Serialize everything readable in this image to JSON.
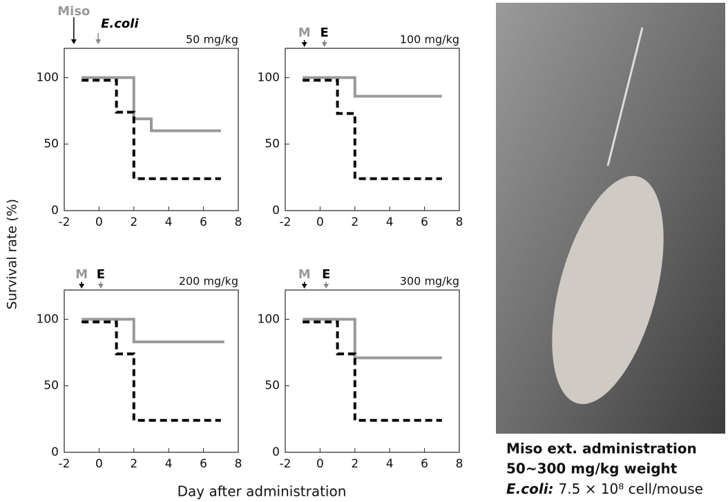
{
  "figure": {
    "ylabel": "Survival rate (%)",
    "xlabel": "Day after administration",
    "caption": [
      "Miso ext. administration",
      "50~300 mg/kg weight"
    ],
    "caption_species": "E.coli:",
    "caption_dose": "7.5 × 10⁸ cell/mouse"
  },
  "chart_data": [
    {
      "type": "line",
      "subtitle": "50 mg/kg",
      "xlim": [
        -2,
        8
      ],
      "xticks": [
        -2,
        0,
        2,
        4,
        6,
        8
      ],
      "ylim": [
        0,
        122
      ],
      "yticks": [
        0,
        50,
        100
      ],
      "markers": [
        {
          "label": "Miso",
          "x": -1.45,
          "label_color": "#999999",
          "arrow_color": "#000000"
        },
        {
          "label": "E.coli",
          "x": -0.05,
          "label_color": "#000000",
          "arrow_color": "#888888"
        }
      ],
      "series": [
        {
          "color": "#999999",
          "dash": false,
          "x": [
            -1,
            2,
            2,
            3,
            3,
            7
          ],
          "values": [
            100,
            100,
            69,
            69,
            60,
            60
          ]
        },
        {
          "color": "#000000",
          "dash": true,
          "x": [
            -1,
            1,
            1,
            2,
            2,
            7
          ],
          "values": [
            98,
            98,
            74,
            74,
            24,
            24
          ]
        }
      ]
    },
    {
      "type": "line",
      "subtitle": "100 mg/kg",
      "xlim": [
        -2,
        8
      ],
      "xticks": [
        -2,
        0,
        2,
        4,
        6,
        8
      ],
      "ylim": [
        0,
        122
      ],
      "yticks": [
        0,
        50,
        100
      ],
      "markers": [
        {
          "label": "M",
          "x": -0.9,
          "label_color": "#999999",
          "arrow_color": "#000000"
        },
        {
          "label": "E",
          "x": 0.25,
          "label_color": "#000000",
          "arrow_color": "#888888"
        }
      ],
      "series": [
        {
          "color": "#999999",
          "dash": false,
          "x": [
            -1,
            2,
            2,
            7
          ],
          "values": [
            100,
            100,
            86,
            86
          ]
        },
        {
          "color": "#000000",
          "dash": true,
          "x": [
            -1,
            1,
            1,
            2,
            2,
            7
          ],
          "values": [
            98,
            98,
            73,
            73,
            24,
            24
          ]
        }
      ]
    },
    {
      "type": "line",
      "subtitle": "200 mg/kg",
      "xlim": [
        -2,
        8
      ],
      "xticks": [
        -2,
        0,
        2,
        4,
        6,
        8
      ],
      "ylim": [
        0,
        122
      ],
      "yticks": [
        0,
        50,
        100
      ],
      "markers": [
        {
          "label": "M",
          "x": -1,
          "label_color": "#999999",
          "arrow_color": "#000000"
        },
        {
          "label": "E",
          "x": 0.1,
          "label_color": "#000000",
          "arrow_color": "#888888"
        }
      ],
      "series": [
        {
          "color": "#999999",
          "dash": false,
          "x": [
            -1,
            2,
            2,
            7.2
          ],
          "values": [
            100,
            100,
            83,
            83
          ]
        },
        {
          "color": "#000000",
          "dash": true,
          "x": [
            -1,
            1,
            1,
            2,
            2,
            7
          ],
          "values": [
            98,
            98,
            74,
            74,
            24,
            24
          ]
        }
      ]
    },
    {
      "type": "line",
      "subtitle": "300 mg/kg",
      "xlim": [
        -2,
        8
      ],
      "xticks": [
        -2,
        0,
        2,
        4,
        6,
        8
      ],
      "ylim": [
        0,
        122
      ],
      "yticks": [
        0,
        50,
        100
      ],
      "markers": [
        {
          "label": "M",
          "x": -0.9,
          "label_color": "#999999",
          "arrow_color": "#000000"
        },
        {
          "label": "E",
          "x": 0.35,
          "label_color": "#000000",
          "arrow_color": "#888888"
        }
      ],
      "series": [
        {
          "color": "#999999",
          "dash": false,
          "x": [
            -1,
            2,
            2,
            7
          ],
          "values": [
            100,
            100,
            71,
            71
          ]
        },
        {
          "color": "#000000",
          "dash": true,
          "x": [
            -1,
            1,
            1,
            2,
            2,
            7
          ],
          "values": [
            98,
            98,
            74,
            74,
            24,
            24
          ]
        }
      ]
    }
  ]
}
